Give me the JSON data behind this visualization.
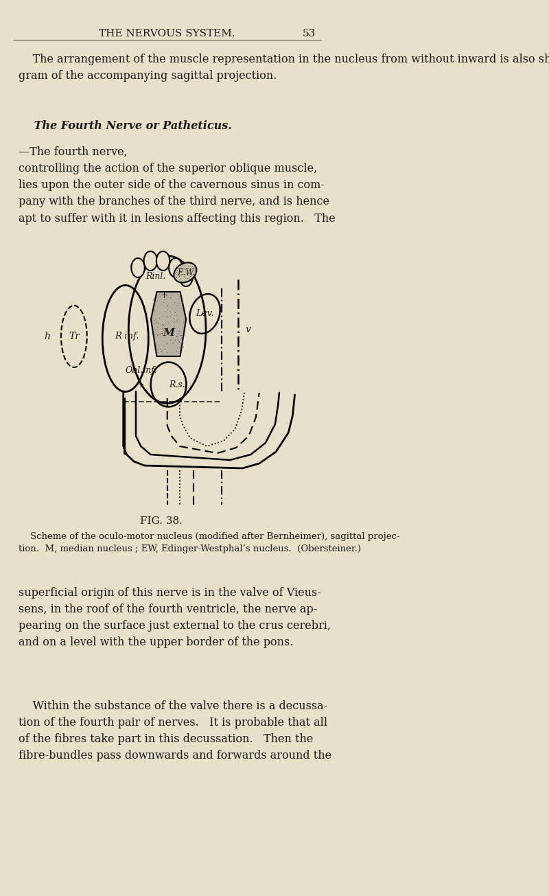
{
  "bg_color": "#e8e0c8",
  "page_color": "#e8dfc6",
  "text_color": "#1a1a1a",
  "header_text": "THE NERVOUS SYSTEM.",
  "page_number": "53",
  "para1": "The arrangement of the muscle representation in the nucleus from without inward is also shown in the dia-gram of the accompanying sagittal projection.",
  "para2_italic": "The Fourth Nerve or Patheticus.",
  "para2_rest": "—The fourth nerve, controlling the action of the superior oblique muscle, lies upon the outer side of the cavernous sinus in com-pany with the branches of the third nerve, and is hence apt to suffer with it in lesions affecting this region.  The",
  "fig_caption": "FIG. 38.",
  "fig_desc": "Scheme of the oculo-motor nucleus (modified after Bernheimer), sagittal projec-tion.  M, median nucleus ; EW, Edinger-Westphal’s nucleus.  (Obersteiner.)",
  "para3": "superficial origin of this nerve is in the valve of Vieus-sens, in the roof of the fourth ventricle, the nerve ap-pearing on the surface just external to the crus cerebri, and on a level with the upper border of the pons.",
  "para4": "Within the substance of the valve there is a decussa-tion of the fourth pair of nerves.  It is probable that all of the fibres take part in this decussation.  Then the fibre-bundles pass downwards and forwards around the"
}
